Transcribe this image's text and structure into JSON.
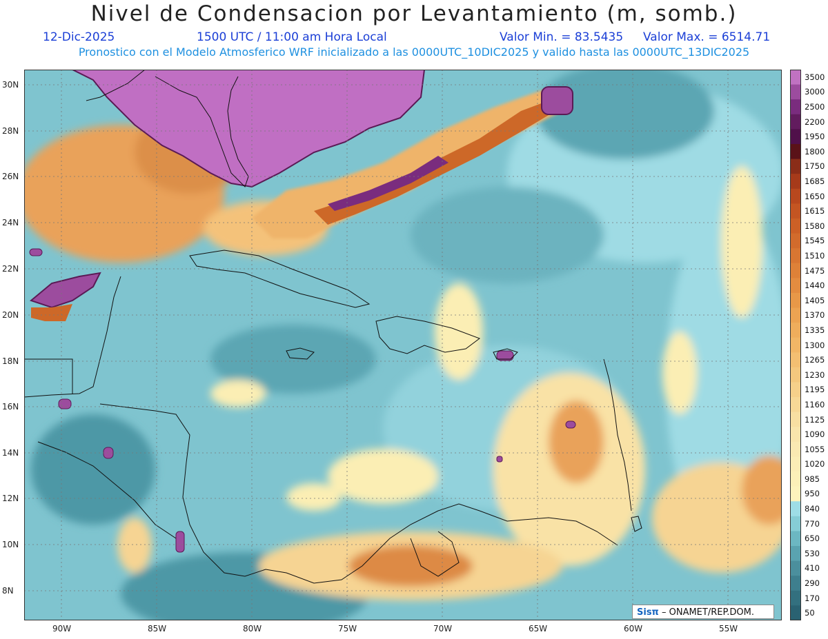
{
  "header": {
    "title": "Nivel de Condensacion por Levantamiento (m, somb.)",
    "date": "12-Dic-2025",
    "time": "1500 UTC / 11:00 am Hora Local",
    "min_label": "Valor Min. = 83.5435",
    "max_label": "Valor Max. = 6514.71",
    "model_info": "Pronostico con el Modelo Atmosferico WRF inicializado a las 0000UTC_10DIC2025 y valido hasta las  0000UTC_13DIC2025"
  },
  "axes": {
    "lat_labels": [
      "30N",
      "28N",
      "26N",
      "24N",
      "22N",
      "20N",
      "18N",
      "16N",
      "14N",
      "12N",
      "10N",
      "8N"
    ],
    "lon_labels": [
      "90W",
      "85W",
      "80W",
      "75W",
      "70W",
      "65W",
      "60W",
      "55W"
    ]
  },
  "colorbar": {
    "labels": [
      "3500",
      "3000",
      "2500",
      "2200",
      "1950",
      "1800",
      "1750",
      "1685",
      "1650",
      "1615",
      "1580",
      "1545",
      "1510",
      "1475",
      "1440",
      "1405",
      "1370",
      "1335",
      "1300",
      "1265",
      "1230",
      "1195",
      "1160",
      "1125",
      "1090",
      "1055",
      "1020",
      "985",
      "950",
      "840",
      "770",
      "650",
      "530",
      "410",
      "290",
      "170",
      "50"
    ],
    "colors": [
      "#c072c2",
      "#9c4c9e",
      "#7a2c7e",
      "#621c5e",
      "#50104a",
      "#5a1218",
      "#8a2d18",
      "#a63a1a",
      "#b8481e",
      "#c45522",
      "#cc6026",
      "#d26b2c",
      "#d87632",
      "#de8138",
      "#e38c40",
      "#e89848",
      "#eca352",
      "#efad5c",
      "#f1b666",
      "#f3bf72",
      "#f4c87e",
      "#f6d08a",
      "#f7d896",
      "#f8dfa2",
      "#f9e5ac",
      "#fae9b2",
      "#fbedb6",
      "#fcf0b8",
      "#fdf3bc",
      "#9edde6",
      "#86cdd6",
      "#6cb7c2",
      "#5aa3b0",
      "#4b8f9d",
      "#3e7f8e",
      "#33707f",
      "#2a6272"
    ]
  },
  "credit": {
    "brand": "Sisπ",
    "text": "– ONAMET/REP.DOM."
  }
}
